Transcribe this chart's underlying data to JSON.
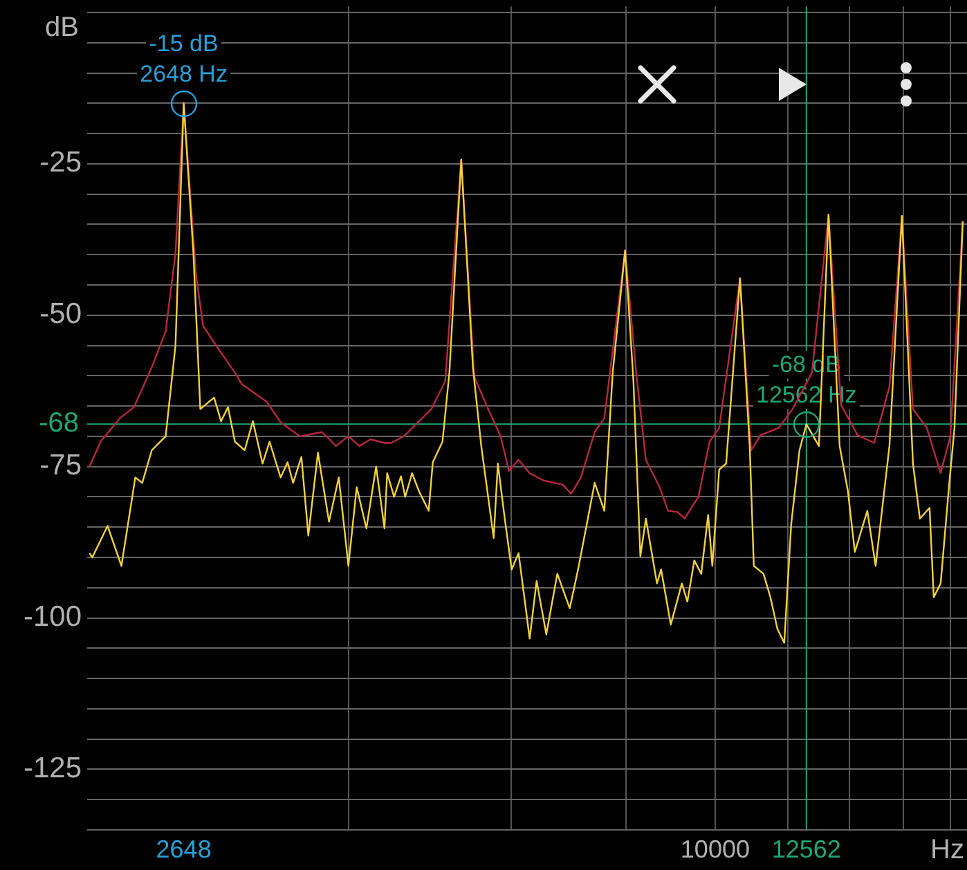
{
  "chart_data": {
    "type": "line",
    "xlabel": "Hz",
    "ylabel": "dB",
    "log": "x",
    "grid": true,
    "marker": "none",
    "line_style": "solid",
    "legend": false,
    "xlim": [
      2080,
      18770
    ],
    "ylim": [
      -135,
      1
    ],
    "xticks": [
      {
        "value": 2648,
        "label": "2648"
      },
      {
        "value": 4000,
        "label": null
      },
      {
        "value": 6000,
        "label": null
      },
      {
        "value": 8000,
        "label": null
      },
      {
        "value": 10000,
        "label": "10000"
      },
      {
        "value": 12000,
        "label": null
      },
      {
        "value": 12562,
        "label": "12562"
      },
      {
        "value": 14000,
        "label": null
      },
      {
        "value": 16000,
        "label": null
      },
      {
        "value": 18000,
        "label": null
      }
    ],
    "yticks": [
      {
        "value": -135,
        "label": null
      },
      {
        "value": -130,
        "label": null
      },
      {
        "value": -125,
        "label": "-125"
      },
      {
        "value": -120,
        "label": null
      },
      {
        "value": -115,
        "label": null
      },
      {
        "value": -110,
        "label": null
      },
      {
        "value": -105,
        "label": null
      },
      {
        "value": -100,
        "label": "-100"
      },
      {
        "value": -95,
        "label": null
      },
      {
        "value": -90,
        "label": null
      },
      {
        "value": -85,
        "label": null
      },
      {
        "value": -80,
        "label": null
      },
      {
        "value": -75,
        "label": "-75"
      },
      {
        "value": -70,
        "label": null
      },
      {
        "value": -65,
        "label": null
      },
      {
        "value": -60,
        "label": null
      },
      {
        "value": -55,
        "label": null
      },
      {
        "value": -50,
        "label": "-50"
      },
      {
        "value": -45,
        "label": null
      },
      {
        "value": -40,
        "label": null
      },
      {
        "value": -35,
        "label": null
      },
      {
        "value": -30,
        "label": null
      },
      {
        "value": -25,
        "label": "-25"
      },
      {
        "value": -20,
        "label": null
      },
      {
        "value": -15,
        "label": null
      },
      {
        "value": -10,
        "label": null
      },
      {
        "value": -5,
        "label": null
      },
      {
        "value": 0,
        "label": null
      }
    ],
    "series": [
      {
        "color": "#f2d23c",
        "x": [
          2092,
          2107,
          2189,
          2266,
          2346,
          2387,
          2445,
          2531,
          2594,
          2648,
          2713,
          2760,
          2857,
          2907,
          2958,
          3010,
          3084,
          3148,
          3225,
          3282,
          3374,
          3433,
          3481,
          3554,
          3616,
          3704,
          3808,
          3902,
          3997,
          4081,
          4181,
          4284,
          4374,
          4404,
          4481,
          4559,
          4607,
          4687,
          4769,
          4886,
          4936,
          5057,
          5145,
          5300,
          5457,
          5572,
          5748,
          5808,
          5909,
          6012,
          6117,
          6289,
          6399,
          6556,
          6739,
          6952,
          7098,
          7399,
          7580,
          7740,
          7984,
          8152,
          8294,
          8410,
          8646,
          8736,
          8950,
          9201,
          9329,
          9492,
          9658,
          9826,
          9929,
          10102,
          10279,
          10641,
          10902,
          11015,
          11285,
          11482,
          11683,
          11886,
          12094,
          12348,
          12562,
          12961,
          13278,
          13651,
          13937,
          14180,
          14629,
          14936,
          15461,
          15950,
          16398,
          16684,
          17093,
          17272,
          17573,
          17941,
          18192,
          18573
        ],
        "values": [
          -89.3,
          -90,
          -84.8,
          -91.4,
          -76.8,
          -77.7,
          -72.3,
          -70,
          -55,
          -15,
          -39.8,
          -65.5,
          -63.6,
          -67.5,
          -65.2,
          -70.9,
          -72.3,
          -67.5,
          -74.5,
          -70.9,
          -76.8,
          -74.3,
          -77.7,
          -73.4,
          -86.4,
          -72.7,
          -84.1,
          -76.8,
          -91.4,
          -78.4,
          -85.2,
          -75,
          -85.2,
          -76.1,
          -80,
          -76.6,
          -80,
          -76.1,
          -79.1,
          -82.3,
          -74.3,
          -70.9,
          -59.5,
          -24.3,
          -58.6,
          -71.6,
          -86.8,
          -74.5,
          -83.6,
          -92,
          -89.3,
          -103.4,
          -93.9,
          -102.7,
          -92.7,
          -98.4,
          -92,
          -77.7,
          -82.3,
          -59.5,
          -39.3,
          -60.9,
          -89.8,
          -83.6,
          -94.3,
          -92,
          -101.1,
          -94.3,
          -97.3,
          -90.5,
          -92.7,
          -83,
          -91.4,
          -75.5,
          -74.5,
          -43.9,
          -71.6,
          -91.4,
          -92.7,
          -96.6,
          -101.8,
          -104.1,
          -84.5,
          -72.3,
          -68,
          -71.6,
          -33.4,
          -71.6,
          -79.1,
          -89.1,
          -82.3,
          -91.4,
          -71.6,
          -33.6,
          -74.5,
          -83.6,
          -81.8,
          -96.6,
          -94.3,
          -78.4,
          -68.6,
          -34.5
        ]
      },
      {
        "color": "#b8283f",
        "x": [
          2092,
          2151,
          2258,
          2338,
          2445,
          2531,
          2594,
          2648,
          2732,
          2780,
          2877,
          3010,
          3062,
          3259,
          3374,
          3541,
          3743,
          3875,
          3997,
          4110,
          4225,
          4374,
          4450,
          4591,
          4720,
          4919,
          5092,
          5300,
          5476,
          5669,
          5848,
          5971,
          6117,
          6289,
          6511,
          6833,
          6976,
          7148,
          7399,
          7580,
          7984,
          8208,
          8410,
          8705,
          8888,
          9106,
          9265,
          9591,
          9860,
          10102,
          10641,
          10939,
          11208,
          11723,
          12136,
          12738,
          13278,
          13698,
          14279,
          14884,
          15461,
          15950,
          16398,
          16976,
          17573,
          18004,
          18573
        ],
        "values": [
          -75,
          -70.9,
          -67,
          -65.2,
          -58.6,
          -52.7,
          -39.8,
          -15,
          -43.6,
          -51.8,
          -55.2,
          -59.5,
          -61.4,
          -64.3,
          -67.7,
          -70,
          -69.3,
          -71.6,
          -70,
          -71.6,
          -70.5,
          -71.1,
          -71.1,
          -70,
          -68.2,
          -65.5,
          -60.9,
          -24.3,
          -60.2,
          -65.5,
          -70,
          -75.7,
          -73.9,
          -76.1,
          -77.3,
          -78,
          -79.5,
          -76.8,
          -69.3,
          -67,
          -39.3,
          -59.5,
          -73.9,
          -78.4,
          -82.3,
          -82.5,
          -83.6,
          -80,
          -70.9,
          -68.6,
          -43.9,
          -72.3,
          -69.8,
          -68.6,
          -65.5,
          -59.5,
          -33.4,
          -64.8,
          -69.8,
          -71.1,
          -61.8,
          -33.6,
          -65.5,
          -68.6,
          -76.1,
          -70,
          -34.5
        ]
      }
    ],
    "ref_lines": [
      {
        "axis": "y",
        "value": -68,
        "label": "-68",
        "color": "#1fa57a"
      },
      {
        "axis": "x",
        "value": 12562,
        "color": "#1fa57a"
      }
    ],
    "annotations": [
      {
        "text": "-15 dB\n2648 Hz",
        "x": 2648,
        "y": -15
      },
      {
        "text": "-68 dB\n12562 Hz",
        "x": 12562,
        "y": -68
      }
    ]
  }
}
